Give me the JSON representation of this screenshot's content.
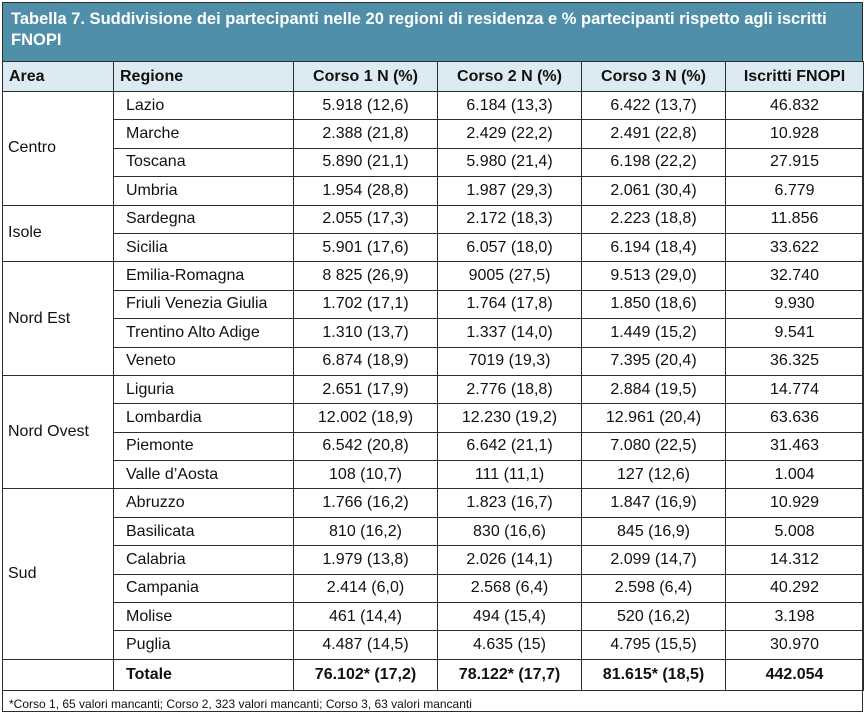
{
  "title": "Tabella 7. Suddivisione dei partecipanti nelle 20 regioni di residenza e % partecipanti rispetto agli iscritti FNOPI",
  "headers": [
    "Area",
    "Regione",
    "Corso 1 N (%)",
    "Corso 2 N (%)",
    "Corso 3 N (%)",
    "Iscritti FNOPI"
  ],
  "groups": [
    {
      "area": "Centro",
      "rows": [
        {
          "regione": "Lazio",
          "c1": "5.918 (12,6)",
          "c2": "6.184 (13,3)",
          "c3": "6.422 (13,7)",
          "iscritti": "46.832"
        },
        {
          "regione": "Marche",
          "c1": "2.388 (21,8)",
          "c2": "2.429 (22,2)",
          "c3": "2.491 (22,8)",
          "iscritti": "10.928"
        },
        {
          "regione": "Toscana",
          "c1": "5.890 (21,1)",
          "c2": "5.980 (21,4)",
          "c3": "6.198 (22,2)",
          "iscritti": "27.915"
        },
        {
          "regione": "Umbria",
          "c1": "1.954 (28,8)",
          "c2": "1.987 (29,3)",
          "c3": "2.061 (30,4)",
          "iscritti": "6.779"
        }
      ]
    },
    {
      "area": "Isole",
      "rows": [
        {
          "regione": "Sardegna",
          "c1": "2.055 (17,3)",
          "c2": "2.172 (18,3)",
          "c3": "2.223 (18,8)",
          "iscritti": "11.856"
        },
        {
          "regione": "Sicilia",
          "c1": "5.901 (17,6)",
          "c2": "6.057 (18,0)",
          "c3": "6.194 (18,4)",
          "iscritti": "33.622"
        }
      ]
    },
    {
      "area": "Nord Est",
      "rows": [
        {
          "regione": "Emilia-Romagna",
          "c1": "8 825 (26,9)",
          "c2": "9005 (27,5)",
          "c3": "9.513 (29,0)",
          "iscritti": "32.740"
        },
        {
          "regione": "Friuli Venezia Giulia",
          "c1": "1.702 (17,1)",
          "c2": "1.764 (17,8)",
          "c3": "1.850 (18,6)",
          "iscritti": "9.930"
        },
        {
          "regione": "Trentino Alto Adige",
          "c1": "1.310 (13,7)",
          "c2": "1.337 (14,0)",
          "c3": "1.449 (15,2)",
          "iscritti": "9.541"
        },
        {
          "regione": "Veneto",
          "c1": "6.874 (18,9)",
          "c2": "7019 (19,3)",
          "c3": "7.395 (20,4)",
          "iscritti": "36.325"
        }
      ]
    },
    {
      "area": "Nord Ovest",
      "rows": [
        {
          "regione": "Liguria",
          "c1": "2.651 (17,9)",
          "c2": "2.776 (18,8)",
          "c3": "2.884 (19,5)",
          "iscritti": "14.774"
        },
        {
          "regione": "Lombardia",
          "c1": "12.002 (18,9)",
          "c2": "12.230 (19,2)",
          "c3": "12.961 (20,4)",
          "iscritti": "63.636"
        },
        {
          "regione": "Piemonte",
          "c1": "6.542 (20,8)",
          "c2": "6.642 (21,1)",
          "c3": "7.080 (22,5)",
          "iscritti": "31.463"
        },
        {
          "regione": "Valle d’Aosta",
          "c1": "108 (10,7)",
          "c2": "111 (11,1)",
          "c3": "127 (12,6)",
          "iscritti": "1.004"
        }
      ]
    },
    {
      "area": "Sud",
      "rows": [
        {
          "regione": "Abruzzo",
          "c1": "1.766 (16,2)",
          "c2": "1.823 (16,7)",
          "c3": "1.847 (16,9)",
          "iscritti": "10.929"
        },
        {
          "regione": "Basilicata",
          "c1": "810 (16,2)",
          "c2": "830 (16,6)",
          "c3": "845 (16,9)",
          "iscritti": "5.008"
        },
        {
          "regione": "Calabria",
          "c1": "1.979 (13,8)",
          "c2": "2.026 (14,1)",
          "c3": "2.099 (14,7)",
          "iscritti": "14.312"
        },
        {
          "regione": "Campania",
          "c1": "2.414 (6,0)",
          "c2": "2.568 (6,4)",
          "c3": "2.598 (6,4)",
          "iscritti": "40.292"
        },
        {
          "regione": "Molise",
          "c1": "461 (14,4)",
          "c2": "494 (15,4)",
          "c3": "520 (16,2)",
          "iscritti": "3.198"
        },
        {
          "regione": "Puglia",
          "c1": "4.487 (14,5)",
          "c2": "4.635 (15)",
          "c3": "4.795 (15,5)",
          "iscritti": "30.970"
        }
      ]
    }
  ],
  "total": {
    "label": "Totale",
    "c1": "76.102* (17,2)",
    "c2": "78.122* (17,7)",
    "c3": "81.615* (18,5)",
    "iscritti": "442.054"
  },
  "footnote": "*Corso 1, 65 valori mancanti; Corso 2, 323 valori mancanti; Corso 3, 63 valori mancanti",
  "colors": {
    "title_bg": "#4f8fa9",
    "header_bg": "#dcebf1"
  }
}
